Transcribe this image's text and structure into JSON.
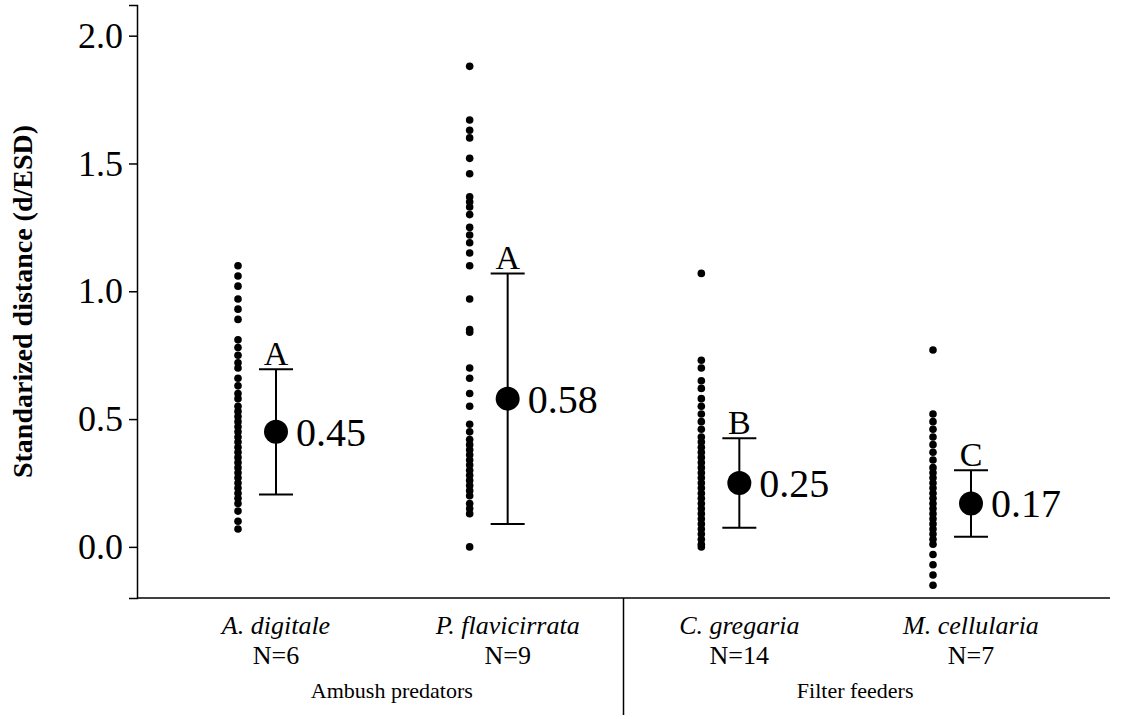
{
  "chart_data": {
    "type": "strip",
    "y_label": "Standarized distance (d/ESD)",
    "categories": [
      "A. digitale",
      "P. flavicirrata",
      "C. gregaria",
      "M. cellularia"
    ],
    "n_labels": [
      "N=6",
      "N=9",
      "N=14",
      "N=7"
    ],
    "groups": [
      {
        "name": "Ambush predators",
        "members": [
          "A. digitale",
          "P. flavicirrata"
        ]
      },
      {
        "name": "Filter feeders",
        "members": [
          "C. gregaria",
          "M. cellularia"
        ]
      }
    ],
    "values": [
      0.45,
      0.58,
      0.25,
      0.17
    ],
    "errors": [
      0.245,
      0.49,
      0.175,
      0.13
    ],
    "letters": [
      "A",
      "A",
      "B",
      "C"
    ],
    "points": [
      [
        1.1,
        1.06,
        1.02,
        0.97,
        0.93,
        0.89,
        0.81,
        0.78,
        0.75,
        0.72,
        0.7,
        0.66,
        0.63,
        0.6,
        0.58,
        0.55,
        0.53,
        0.51,
        0.49,
        0.47,
        0.45,
        0.43,
        0.41,
        0.39,
        0.37,
        0.35,
        0.33,
        0.31,
        0.29,
        0.27,
        0.25,
        0.23,
        0.21,
        0.19,
        0.17,
        0.14,
        0.1,
        0.07
      ],
      [
        1.88,
        1.67,
        1.63,
        1.6,
        1.52,
        1.46,
        1.37,
        1.35,
        1.33,
        1.3,
        1.25,
        1.22,
        1.19,
        1.15,
        1.1,
        0.97,
        0.85,
        0.84,
        0.7,
        0.66,
        0.6,
        0.55,
        0.48,
        0.45,
        0.42,
        0.4,
        0.38,
        0.36,
        0.34,
        0.32,
        0.3,
        0.28,
        0.26,
        0.24,
        0.22,
        0.2,
        0.17,
        0.15,
        0.13,
        0.0
      ],
      [
        1.07,
        0.73,
        0.7,
        0.65,
        0.62,
        0.58,
        0.55,
        0.52,
        0.49,
        0.46,
        0.43,
        0.41,
        0.39,
        0.37,
        0.35,
        0.33,
        0.31,
        0.29,
        0.27,
        0.25,
        0.23,
        0.21,
        0.19,
        0.17,
        0.15,
        0.13,
        0.11,
        0.09,
        0.07,
        0.05,
        0.03,
        0.01,
        0.0
      ],
      [
        0.77,
        0.52,
        0.49,
        0.46,
        0.43,
        0.4,
        0.37,
        0.34,
        0.31,
        0.29,
        0.27,
        0.25,
        0.23,
        0.21,
        0.19,
        0.17,
        0.15,
        0.13,
        0.11,
        0.09,
        0.07,
        0.05,
        0.03,
        0.01,
        -0.03,
        -0.07,
        -0.11,
        -0.15
      ]
    ],
    "color": "#000000",
    "data_labels": true,
    "ylim": [
      -0.2,
      2.12
    ],
    "yticks": [
      {
        "value": 0,
        "label": "0.0"
      },
      0.5,
      {
        "value": 1,
        "label": "1.0"
      },
      1.5,
      {
        "value": 2,
        "label": "2.0"
      }
    ]
  }
}
